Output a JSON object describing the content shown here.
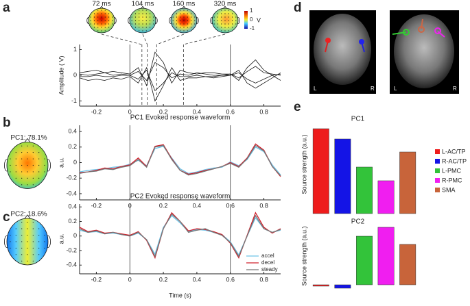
{
  "panel_labels": [
    "a",
    "b",
    "c",
    "d",
    "e"
  ],
  "brain_images": [
    {
      "left": "L",
      "right": "R"
    },
    {
      "left": "L",
      "right": "R"
    }
  ],
  "chart_data": [
    {
      "type": "line",
      "ylabel": "Amplitude ( V)",
      "color": "#111",
      "x": [
        -0.3,
        -0.25,
        -0.2,
        -0.15,
        -0.1,
        -0.05,
        0,
        0.05,
        0.1,
        0.15,
        0.2,
        0.25,
        0.3,
        0.35,
        0.4,
        0.45,
        0.5,
        0.55,
        0.6,
        0.65,
        0.7,
        0.75,
        0.8,
        0.85,
        0.9
      ],
      "series": [
        {
          "values": [
            0.1,
            0.15,
            0.2,
            0.1,
            0.15,
            0.1,
            0.05,
            0.3,
            -0.4,
            0.9,
            0.5,
            -0.3,
            0.2,
            0.1,
            0.05,
            0.1,
            0.1,
            0.05,
            0.05,
            -0.2,
            0.3,
            0.6,
            0.2,
            0,
            -0.2
          ]
        },
        {
          "values": [
            -0.1,
            -0.2,
            -0.15,
            -0.2,
            -0.1,
            -0.15,
            -0.05,
            -0.3,
            0.3,
            -1.0,
            -0.4,
            0.3,
            -0.2,
            -0.1,
            -0.1,
            -0.05,
            -0.1,
            -0.05,
            0,
            0.2,
            -0.3,
            -0.5,
            -0.3,
            -0.1,
            0.1
          ]
        },
        {
          "values": [
            0.05,
            0,
            0.05,
            0.1,
            0,
            0.05,
            0,
            0.15,
            -0.2,
            0.5,
            0.3,
            -0.1,
            0.05,
            0,
            0.1,
            0.05,
            0,
            0,
            0.05,
            -0.1,
            0.15,
            0.35,
            0.1,
            0.05,
            0
          ]
        },
        {
          "values": [
            -0.05,
            -0.05,
            0,
            -0.05,
            -0.05,
            0,
            0,
            -0.15,
            0.2,
            -0.6,
            -0.3,
            0.1,
            -0.05,
            -0.05,
            0,
            -0.05,
            -0.05,
            0,
            0,
            0.1,
            -0.15,
            -0.3,
            -0.15,
            0,
            0.05
          ]
        }
      ],
      "xlim": [
        -0.3,
        0.9
      ],
      "ylim": [
        -1.2,
        1.2
      ],
      "xticks": [
        -0.2,
        0,
        0.2,
        0.4,
        0.6,
        0.8
      ],
      "yticks": [
        -1,
        0,
        1
      ],
      "event_lines": [
        0,
        0.6
      ],
      "topomaps": [
        {
          "value": 0.072,
          "label": "72 ms"
        },
        {
          "value": 0.104,
          "label": "104 ms"
        },
        {
          "value": 0.16,
          "label": "160 ms"
        },
        {
          "value": 0.32,
          "label": "320 ms"
        }
      ],
      "colorbar": {
        "ticks": [
          1,
          0,
          -1
        ],
        "unit": "V"
      }
    },
    {
      "type": "line",
      "title": "PC1 Evoked response waveform",
      "ylabel": "a.u.",
      "topomap_label": "PC1: 78.1%",
      "x": [
        -0.3,
        -0.25,
        -0.2,
        -0.15,
        -0.1,
        -0.05,
        0,
        0.05,
        0.1,
        0.15,
        0.2,
        0.25,
        0.3,
        0.35,
        0.4,
        0.45,
        0.5,
        0.55,
        0.6,
        0.65,
        0.7,
        0.75,
        0.8,
        0.85,
        0.9
      ],
      "series": [
        {
          "name": "accel",
          "color": "#6ec3e8",
          "values": [
            -0.12,
            -0.1,
            -0.09,
            -0.08,
            -0.06,
            -0.05,
            -0.02,
            0.03,
            -0.04,
            0.18,
            0.21,
            0.06,
            -0.08,
            -0.14,
            -0.12,
            -0.09,
            -0.07,
            -0.06,
            0.01,
            -0.04,
            0.04,
            0.2,
            0.14,
            -0.03,
            -0.16
          ]
        },
        {
          "name": "decel",
          "color": "#d0202c",
          "values": [
            -0.13,
            -0.12,
            -0.1,
            -0.07,
            -0.08,
            -0.05,
            -0.03,
            0.06,
            -0.05,
            0.21,
            0.23,
            0.05,
            -0.1,
            -0.15,
            -0.13,
            -0.1,
            -0.08,
            -0.05,
            0,
            -0.05,
            0.06,
            0.24,
            0.16,
            -0.05,
            -0.18
          ]
        },
        {
          "name": "steady",
          "color": "#777777",
          "values": [
            -0.14,
            -0.12,
            -0.11,
            -0.08,
            -0.09,
            -0.06,
            -0.04,
            0.04,
            -0.06,
            0.2,
            0.22,
            0.04,
            -0.1,
            -0.16,
            -0.14,
            -0.11,
            -0.08,
            -0.05,
            -0.01,
            -0.06,
            0.05,
            0.22,
            0.15,
            -0.05,
            -0.17
          ]
        }
      ],
      "xlim": [
        -0.3,
        0.9
      ],
      "ylim": [
        -0.48,
        0.48
      ],
      "xticks": [
        -0.2,
        0,
        0.2,
        0.4,
        0.6,
        0.8
      ],
      "yticks": [
        -0.4,
        -0.2,
        0,
        0.2,
        0.4
      ],
      "event_lines": [
        0,
        0.6
      ]
    },
    {
      "type": "line",
      "title": "PC2 Evoked response waveform",
      "ylabel": "a.u.",
      "xlabel": "Time (s)",
      "topomap_label": "PC2: 18.6%",
      "legend": "lower right",
      "x": [
        -0.3,
        -0.25,
        -0.2,
        -0.15,
        -0.1,
        -0.05,
        0,
        0.05,
        0.1,
        0.15,
        0.2,
        0.25,
        0.3,
        0.35,
        0.4,
        0.45,
        0.5,
        0.55,
        0.6,
        0.65,
        0.7,
        0.75,
        0.8,
        0.85,
        0.9
      ],
      "series": [
        {
          "name": "accel",
          "color": "#6ec3e8",
          "values": [
            0.08,
            0.05,
            0.06,
            0.03,
            0.04,
            0.02,
            0,
            0.04,
            -0.05,
            -0.25,
            0.12,
            0.28,
            0.18,
            0.06,
            0.09,
            0.08,
            0.05,
            0.02,
            -0.08,
            -0.26,
            0,
            0.25,
            0.1,
            0.05,
            0.08
          ]
        },
        {
          "name": "decel",
          "color": "#d0202c",
          "values": [
            0.12,
            0.06,
            0.08,
            0.04,
            0.05,
            0.03,
            0.01,
            0.06,
            -0.06,
            -0.3,
            0.1,
            0.32,
            0.2,
            0.07,
            0.1,
            0.09,
            0.06,
            0.02,
            -0.1,
            -0.3,
            0.01,
            0.32,
            0.12,
            0.04,
            0.1
          ]
        },
        {
          "name": "steady",
          "color": "#777777",
          "values": [
            0.1,
            0.05,
            0.07,
            0.03,
            0.05,
            0.02,
            0,
            0.05,
            -0.05,
            -0.28,
            0.1,
            0.3,
            0.2,
            0.05,
            0.08,
            0.1,
            0.05,
            0.01,
            -0.09,
            -0.28,
            0,
            0.28,
            0.1,
            0.05,
            0.09
          ]
        }
      ],
      "xlim": [
        -0.3,
        0.9
      ],
      "ylim": [
        -0.52,
        0.44
      ],
      "xticks": [
        -0.2,
        0,
        0.2,
        0.4,
        0.6,
        0.8
      ],
      "yticks": [
        -0.4,
        -0.2,
        0,
        0.2,
        0.4
      ],
      "event_lines": [
        0,
        0.6
      ]
    },
    {
      "type": "bar",
      "title": "PC1",
      "ylabel": "Source strength (a.u.)",
      "legend": "right",
      "categories": [
        "L-AC/TP",
        "R-AC/TP",
        "L-PMC",
        "R-PMC",
        "SMA"
      ],
      "colors": [
        "#ee1c1c",
        "#1414e6",
        "#33c33a",
        "#f01ef0",
        "#c8643a"
      ],
      "values": [
        1.24,
        1.09,
        0.68,
        0.48,
        0.9
      ],
      "ylim": [
        0,
        1.44
      ]
    },
    {
      "type": "bar",
      "title": "PC2",
      "ylabel": "Source strength (a.u.)",
      "categories": [
        "L-AC/TP",
        "R-AC/TP",
        "L-PMC",
        "R-PMC",
        "SMA"
      ],
      "colors": [
        "#ee1c1c",
        "#1414e6",
        "#33c33a",
        "#f01ef0",
        "#c8643a"
      ],
      "values": [
        -0.02,
        -0.05,
        0.71,
        0.84,
        0.59
      ],
      "ylim": [
        -0.14,
        0.98
      ]
    }
  ]
}
